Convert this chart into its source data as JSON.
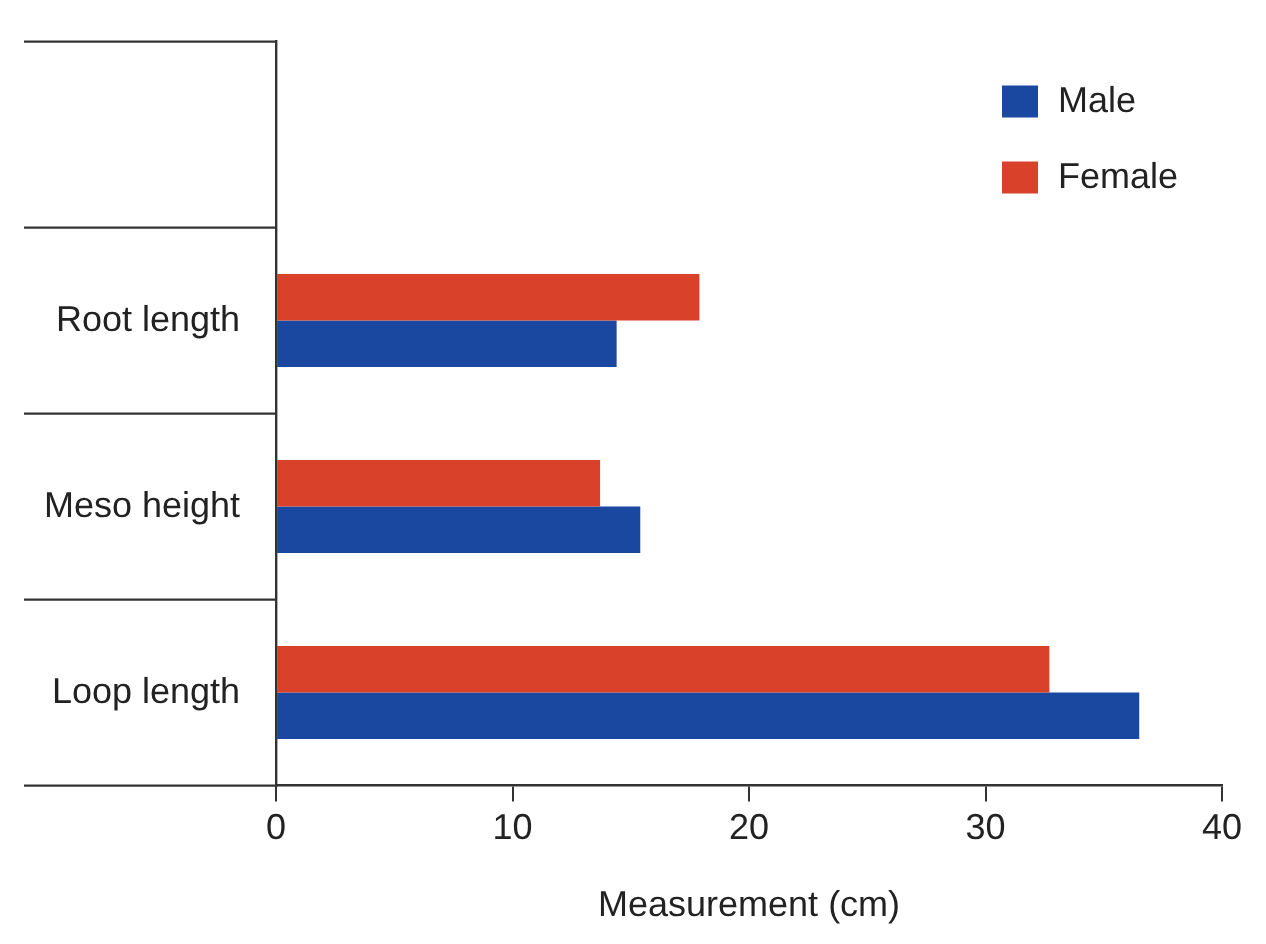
{
  "chart_data": {
    "type": "bar",
    "orientation": "horizontal",
    "xlabel": "Measurement (cm)",
    "categories": [
      null,
      "Root length",
      "Meso height",
      "Loop length"
    ],
    "series": [
      {
        "name": "Female",
        "color": "#d9412b",
        "values": [
          null,
          17.9,
          13.7,
          32.7
        ]
      },
      {
        "name": "Male",
        "color": "#1a48a0",
        "values": [
          null,
          14.4,
          15.4,
          36.5
        ]
      }
    ],
    "xlim": [
      0,
      40
    ],
    "xticks": [
      0,
      10,
      20,
      30,
      40
    ],
    "grid": false,
    "legend": "top right"
  }
}
